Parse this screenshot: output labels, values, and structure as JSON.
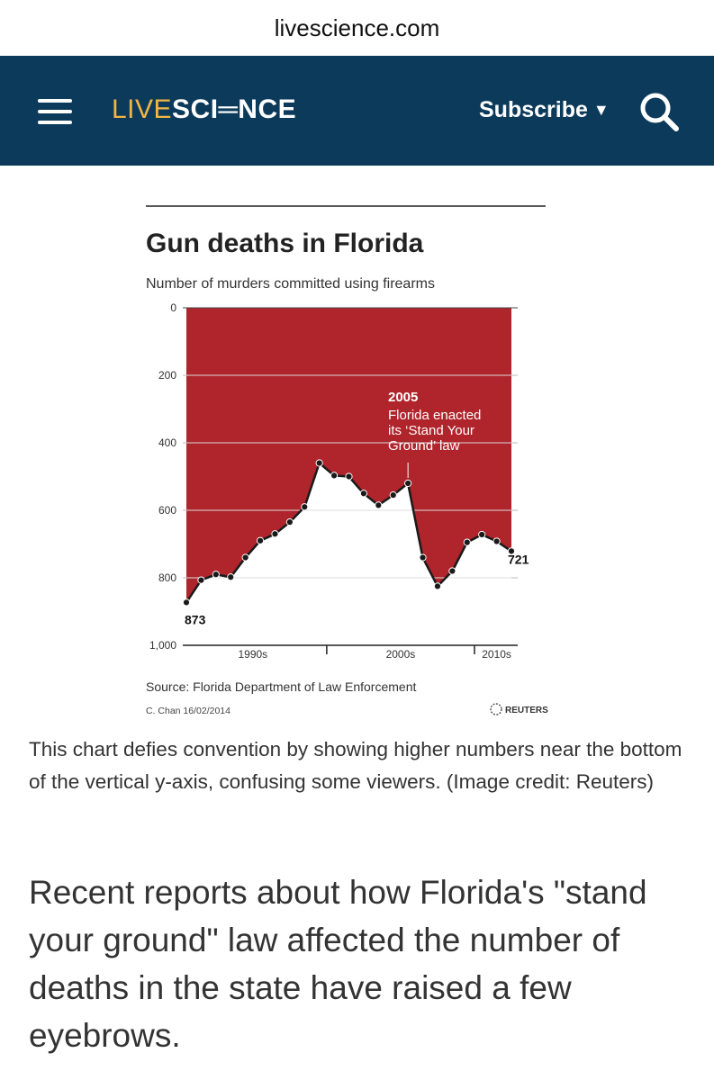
{
  "browser": {
    "url": "livescience.com"
  },
  "header": {
    "logo_live": "LIVE",
    "logo_science": "SCI═NCE",
    "subscribe_label": "Subscribe",
    "subscribe_caret": "▼",
    "menu_icon": "hamburger-menu-icon",
    "search_icon": "search-icon",
    "colors": {
      "background": "#0b3a5a",
      "logo_accent": "#f2b544",
      "text": "#ffffff"
    }
  },
  "chart_data": {
    "type": "area",
    "title": "Gun deaths in Florida",
    "subtitle": "Number of murders committed using firearms",
    "ylabel": "Number of murders committed using firearms",
    "y_inverted": true,
    "ylim": [
      0,
      1000
    ],
    "yticks": [
      "0",
      "200",
      "400",
      "600",
      "800",
      "1,000"
    ],
    "xtick_labels": [
      "1990s",
      "2000s",
      "2010s"
    ],
    "x": [
      1990,
      1991,
      1992,
      1993,
      1994,
      1995,
      1996,
      1997,
      1998,
      1999,
      2000,
      2001,
      2002,
      2003,
      2004,
      2005,
      2006,
      2007,
      2008,
      2009,
      2010,
      2011,
      2012
    ],
    "values": [
      873,
      807,
      790,
      798,
      740,
      690,
      670,
      635,
      590,
      460,
      497,
      500,
      550,
      585,
      555,
      520,
      740,
      825,
      780,
      695,
      672,
      692,
      721
    ],
    "labels": {
      "first": "873",
      "last": "721"
    },
    "annotation": {
      "year": "2005",
      "text_lines": [
        "Florida enacted",
        "its ‘Stand Your",
        "Ground’ law"
      ]
    },
    "source": "Source: Florida Department of Law Enforcement",
    "credit": "C. Chan  16/02/2014",
    "brand": "REUTERS",
    "colors": {
      "fill": "#b0242b",
      "line": "#1a1a1a",
      "grid": "#ffffff"
    }
  },
  "caption": "This chart defies convention by showing higher numbers near the bottom of the vertical y-axis, confusing some viewers. (Image credit: Reuters)",
  "article": {
    "intro": "Recent reports about how Florida's \"stand your ground\" law affected the number of deaths in the state have raised a few eyebrows."
  }
}
